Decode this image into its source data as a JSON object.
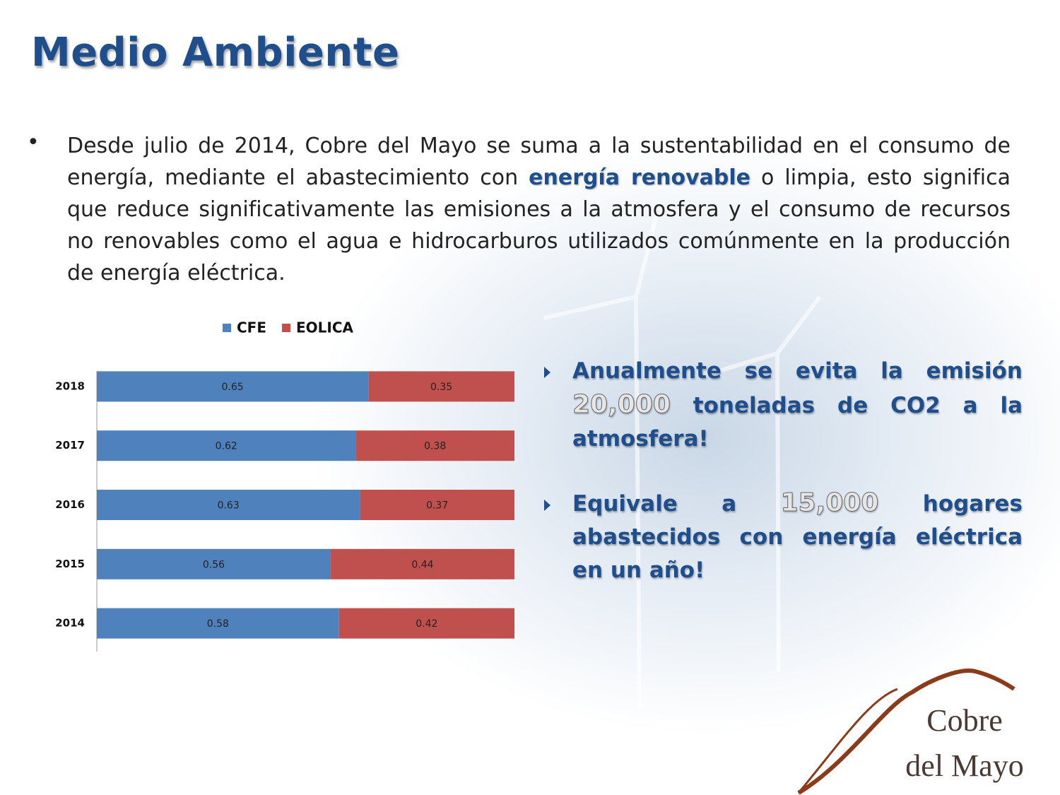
{
  "title": "Medio Ambiente",
  "intro": {
    "bullet": "•",
    "before": "Desde julio de 2014, Cobre del Mayo se suma a la sustentabilidad en el consumo de energía, mediante el abastecimiento con ",
    "highlight": "energía renovable",
    "after": " o limpia, esto significa que reduce significativamente las emisiones a la atmosfera y el consumo de recursos no renovables como el agua e hidrocarburos utilizados comúnmente en la producción de energía eléctrica."
  },
  "facts": [
    {
      "before": "Anualmente se evita la emisión ",
      "number": "20,000",
      "after": " toneladas de CO2 a la atmosfera!"
    },
    {
      "before": "Equivale a ",
      "number": "15,000",
      "after": " hogares abastecidos con energía eléctrica en un año!"
    }
  ],
  "logo": {
    "line1": "Cobre",
    "line2": "del Mayo"
  },
  "chart_data": {
    "type": "bar",
    "orientation": "horizontal",
    "stacked": true,
    "categories": [
      "2018",
      "2017",
      "2016",
      "2015",
      "2014"
    ],
    "series": [
      {
        "name": "CFE",
        "color": "#4f81bd",
        "values": [
          0.65,
          0.62,
          0.63,
          0.56,
          0.58
        ]
      },
      {
        "name": "EOLICA",
        "color": "#c0504d",
        "values": [
          0.35,
          0.38,
          0.37,
          0.44,
          0.42
        ]
      }
    ],
    "xlim": [
      0,
      1
    ],
    "legend": "top"
  }
}
